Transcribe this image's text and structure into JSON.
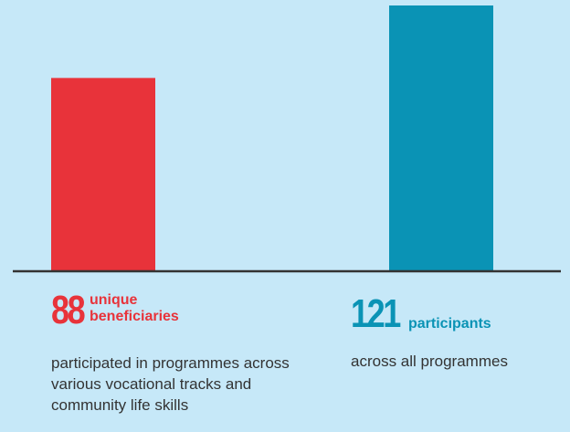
{
  "chart_data": {
    "type": "bar",
    "values": [
      88,
      121
    ],
    "labels": [
      "unique beneficiaries",
      "participants"
    ],
    "descriptions": [
      "participated in programmes across various vocational tracks and community life skills",
      "across all programmes"
    ],
    "colors": [
      "#e8333a",
      "#0a93b5"
    ]
  }
}
